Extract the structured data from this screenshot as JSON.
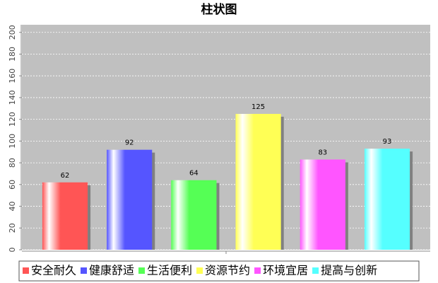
{
  "chart_data": {
    "type": "bar",
    "title": "柱状图",
    "categories": [
      null
    ],
    "series": [
      {
        "name": "安全耐久",
        "color": "#ff5555",
        "values": [
          62
        ]
      },
      {
        "name": "健康舒适",
        "color": "#5555ff",
        "values": [
          92
        ]
      },
      {
        "name": "生活便利",
        "color": "#55ff55",
        "values": [
          64
        ]
      },
      {
        "name": "资源节约",
        "color": "#ffff55",
        "values": [
          125
        ]
      },
      {
        "name": "环境宜居",
        "color": "#ff55ff",
        "values": [
          83
        ]
      },
      {
        "name": "提高与创新",
        "color": "#55ffff",
        "values": [
          93
        ]
      }
    ],
    "ylim": [
      0,
      207
    ],
    "yticks": [
      0,
      20,
      40,
      60,
      80,
      100,
      120,
      140,
      160,
      180,
      200
    ],
    "grid": true
  }
}
